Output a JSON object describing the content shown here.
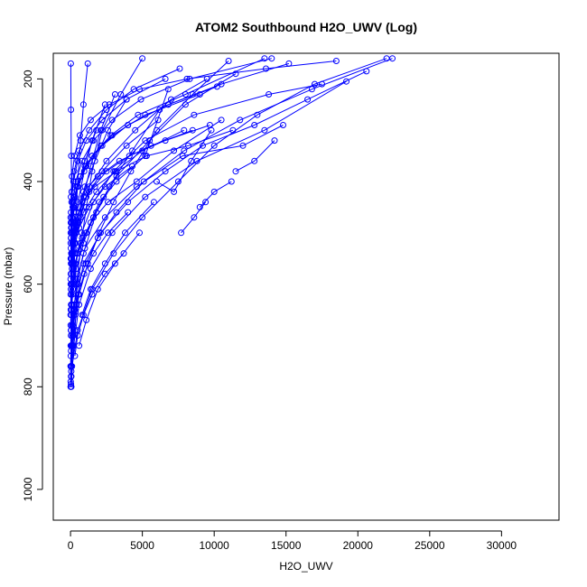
{
  "chart_data": {
    "type": "line",
    "title": "ATOM2 Southbound H2O_UWV (Log)",
    "xlabel": "H2O_UWV",
    "ylabel": "Pressure (mbar)",
    "xlim": [
      -1200,
      34000
    ],
    "ylim": [
      1060,
      150
    ],
    "y_reversed": true,
    "x_ticks": [
      0,
      5000,
      10000,
      15000,
      20000,
      25000,
      30000
    ],
    "x_tick_labels": [
      "0",
      "5000",
      "10000",
      "15000",
      "20000",
      "25000",
      "30000"
    ],
    "y_ticks": [
      200,
      400,
      600,
      800,
      1000
    ],
    "y_tick_labels": [
      "200",
      "400",
      "600",
      "800",
      "1000"
    ],
    "grid": false,
    "marker": "open-circle",
    "series_color": "#0000ff",
    "series": [
      {
        "x": [
          20,
          30,
          60,
          40,
          150,
          300,
          400,
          380,
          250,
          120,
          80,
          50,
          30,
          20
        ],
        "y": [
          800,
          795,
          780,
          760,
          720,
          690,
          640,
          590,
          540,
          480,
          420,
          350,
          260,
          170
        ]
      },
      {
        "x": [
          10,
          20,
          50,
          100,
          200,
          350,
          500,
          700,
          900,
          1200
        ],
        "y": [
          790,
          760,
          700,
          640,
          560,
          480,
          400,
          320,
          250,
          170
        ]
      },
      {
        "x": [
          30,
          100,
          250,
          500,
          800,
          1100,
          1500,
          2200,
          3500,
          5000
        ],
        "y": [
          780,
          720,
          650,
          580,
          510,
          450,
          380,
          300,
          230,
          160
        ]
      },
      {
        "x": [
          50,
          200,
          600,
          1200,
          2000,
          3000,
          4200,
          6000,
          8500,
          11000
        ],
        "y": [
          770,
          700,
          620,
          560,
          500,
          440,
          380,
          300,
          230,
          165
        ]
      },
      {
        "x": [
          100,
          500,
          1500,
          3000,
          5000,
          7500,
          10000,
          13000,
          17000,
          22000
        ],
        "y": [
          760,
          690,
          610,
          540,
          470,
          400,
          330,
          270,
          210,
          160
        ]
      },
      {
        "x": [
          20,
          150,
          400,
          900,
          1800,
          3200,
          5500,
          8000,
          11500
        ],
        "y": [
          740,
          680,
          600,
          540,
          460,
          390,
          320,
          250,
          190
        ]
      },
      {
        "x": [
          40,
          300,
          900,
          2100,
          4000,
          6600,
          9200,
          12800,
          16500,
          20600
        ],
        "y": [
          730,
          650,
          560,
          500,
          440,
          380,
          330,
          290,
          240,
          185
        ]
      },
      {
        "x": [
          60,
          200,
          500,
          1000,
          2400,
          4600,
          7800,
          12000,
          14800
        ],
        "y": [
          720,
          660,
          590,
          530,
          470,
          410,
          350,
          330,
          290
        ]
      },
      {
        "x": [
          30,
          80,
          180,
          350,
          700,
          1300,
          2500,
          4500,
          7000,
          9500
        ],
        "y": [
          700,
          640,
          580,
          520,
          470,
          410,
          360,
          300,
          240,
          200
        ]
      },
      {
        "x": [
          15,
          60,
          150,
          400,
          900,
          1600,
          2700,
          4300,
          6200
        ],
        "y": [
          720,
          660,
          610,
          570,
          520,
          470,
          410,
          340,
          260
        ]
      },
      {
        "x": [
          25,
          70,
          200,
          500,
          1100,
          2000,
          3200,
          5200,
          6800
        ],
        "y": [
          690,
          650,
          600,
          540,
          500,
          440,
          400,
          350,
          220
        ]
      },
      {
        "x": [
          10,
          40,
          120,
          300,
          600,
          1000,
          1700,
          2600,
          3900
        ],
        "y": [
          680,
          620,
          560,
          500,
          460,
          410,
          360,
          300,
          240
        ]
      },
      {
        "x": [
          5,
          30,
          90,
          250,
          520,
          950,
          1500,
          2400
        ],
        "y": [
          660,
          610,
          550,
          490,
          440,
          380,
          320,
          250
        ]
      },
      {
        "x": [
          20,
          60,
          130,
          280,
          560,
          900,
          1400,
          2100,
          3100
        ],
        "y": [
          650,
          600,
          560,
          520,
          480,
          430,
          370,
          300,
          230
        ]
      },
      {
        "x": [
          40,
          120,
          300,
          700,
          1400,
          2600,
          4600,
          7200,
          10500
        ],
        "y": [
          640,
          600,
          560,
          520,
          480,
          440,
          400,
          340,
          280
        ]
      },
      {
        "x": [
          10,
          50,
          150,
          400,
          900,
          1800,
          3100,
          5000,
          7900
        ],
        "y": [
          620,
          580,
          540,
          500,
          460,
          420,
          380,
          340,
          300
        ]
      },
      {
        "x": [
          30,
          100,
          250,
          600,
          1300,
          2400,
          4300
        ],
        "y": [
          610,
          570,
          530,
          490,
          450,
          410,
          370
        ]
      },
      {
        "x": [
          15,
          60,
          180,
          500,
          1100,
          2200,
          3900,
          6100
        ],
        "y": [
          600,
          560,
          520,
          480,
          430,
          380,
          330,
          280
        ]
      },
      {
        "x": [
          5,
          25,
          80,
          220,
          500,
          1000,
          1800
        ],
        "y": [
          590,
          550,
          500,
          460,
          410,
          360,
          300
        ]
      },
      {
        "x": [
          20,
          90,
          240,
          600,
          1300,
          2500,
          4100,
          6600,
          9700
        ],
        "y": [
          580,
          540,
          500,
          460,
          420,
          380,
          350,
          320,
          290
        ]
      },
      {
        "x": [
          35,
          120,
          330,
          800,
          1700,
          3200,
          5300,
          8200,
          11300
        ],
        "y": [
          560,
          520,
          480,
          440,
          410,
          380,
          350,
          330,
          300
        ]
      },
      {
        "x": [
          10,
          40,
          110,
          290,
          700,
          1500,
          2800,
          4700,
          8000,
          13500
        ],
        "y": [
          550,
          510,
          470,
          430,
          390,
          350,
          310,
          270,
          230,
          160
        ]
      },
      {
        "x": [
          50,
          150,
          400,
          900,
          1900,
          3400,
          5600,
          8500
        ],
        "y": [
          540,
          500,
          460,
          420,
          390,
          360,
          330,
          300
        ]
      },
      {
        "x": [
          25,
          80,
          210,
          520,
          1100,
          2200,
          4000,
          6800,
          10200
        ],
        "y": [
          530,
          490,
          450,
          410,
          370,
          330,
          290,
          250,
          215
        ]
      },
      {
        "x": [
          15,
          50,
          140,
          360,
          800,
          1600,
          2900,
          4900,
          8300,
          14000
        ],
        "y": [
          520,
          480,
          440,
          400,
          360,
          320,
          280,
          240,
          200,
          160
        ]
      },
      {
        "x": [
          30,
          100,
          300,
          700,
          1500,
          2900,
          5200,
          9000
        ],
        "y": [
          510,
          470,
          430,
          390,
          350,
          310,
          270,
          230
        ]
      },
      {
        "x": [
          10,
          30,
          90,
          250,
          600,
          1300,
          2500,
          4400,
          7600
        ],
        "y": [
          500,
          460,
          420,
          380,
          340,
          300,
          260,
          220,
          180
        ]
      },
      {
        "x": [
          45,
          150,
          420,
          1000,
          2100,
          4000,
          6800,
          10500,
          15200
        ],
        "y": [
          490,
          450,
          410,
          370,
          330,
          290,
          250,
          210,
          170
        ]
      },
      {
        "x": [
          20,
          70,
          200,
          500,
          1100,
          2200,
          3900,
          6600
        ],
        "y": [
          480,
          440,
          400,
          360,
          320,
          280,
          240,
          200
        ]
      },
      {
        "x": [
          8,
          30,
          100,
          280,
          650,
          1400,
          2700,
          4800,
          8100,
          13600,
          18500
        ],
        "y": [
          470,
          430,
          390,
          350,
          310,
          280,
          250,
          220,
          200,
          180,
          165
        ]
      },
      {
        "x": [
          12,
          45,
          130,
          340,
          780,
          1600,
          3000,
          5200,
          8600,
          13800,
          17500
        ],
        "y": [
          760,
          690,
          620,
          560,
          500,
          440,
          380,
          320,
          270,
          230,
          210
        ]
      },
      {
        "x": [
          60,
          220,
          600,
          1400,
          2900,
          5200,
          8800,
          13500,
          19200
        ],
        "y": [
          800,
          720,
          640,
          570,
          500,
          430,
          360,
          300,
          205
        ]
      },
      {
        "x": [
          5,
          15,
          40,
          100,
          240,
          520,
          1050,
          1900,
          3200,
          5100,
          7900,
          11800,
          16800,
          22400
        ],
        "y": [
          800,
          760,
          720,
          680,
          640,
          600,
          560,
          510,
          460,
          400,
          340,
          280,
          220,
          160
        ]
      },
      {
        "x": [
          400,
          700,
          1100,
          1600,
          2300
        ],
        "y": [
          540,
          520,
          500,
          470,
          430
        ]
      },
      {
        "x": [
          300,
          500,
          900,
          1500,
          2400,
          3700
        ],
        "y": [
          740,
          700,
          660,
          620,
          580,
          540
        ]
      },
      {
        "x": [
          150,
          300,
          550,
          950,
          1600,
          2600,
          4000
        ],
        "y": [
          700,
          660,
          620,
          580,
          540,
          500,
          460
        ]
      },
      {
        "x": [
          800,
          1400,
          2400,
          3800,
          5800
        ],
        "y": [
          660,
          610,
          560,
          500,
          440
        ]
      },
      {
        "x": [
          600,
          1100,
          1900,
          3100,
          4800
        ],
        "y": [
          720,
          670,
          610,
          560,
          500
        ]
      },
      {
        "x": [
          6000,
          7200,
          8400,
          9800
        ],
        "y": [
          400,
          420,
          360,
          300
        ]
      },
      {
        "x": [
          9000,
          10000,
          11200
        ],
        "y": [
          450,
          420,
          400
        ]
      },
      {
        "x": [
          11500,
          12800,
          14200
        ],
        "y": [
          380,
          360,
          320
        ]
      },
      {
        "x": [
          7700,
          8600,
          9400
        ],
        "y": [
          500,
          470,
          440
        ]
      }
    ]
  }
}
